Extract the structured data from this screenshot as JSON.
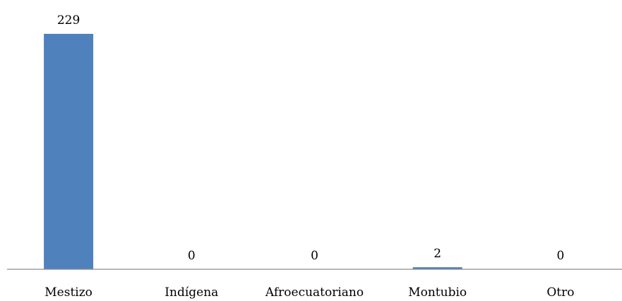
{
  "chart_data": {
    "type": "bar",
    "categories": [
      "Mestizo",
      "Indígena",
      "Afroecuatoriano",
      "Montubio",
      "Otro"
    ],
    "values": [
      229,
      0,
      0,
      2,
      0
    ],
    "data_labels": [
      "229",
      "0",
      "0",
      "2",
      "0"
    ],
    "title": "",
    "xlabel": "",
    "ylabel": "",
    "ylim": [
      0,
      229
    ],
    "grid": false,
    "legend": "none",
    "bar_color": "#4f81bd",
    "axis_color": "#8c8c8c"
  }
}
